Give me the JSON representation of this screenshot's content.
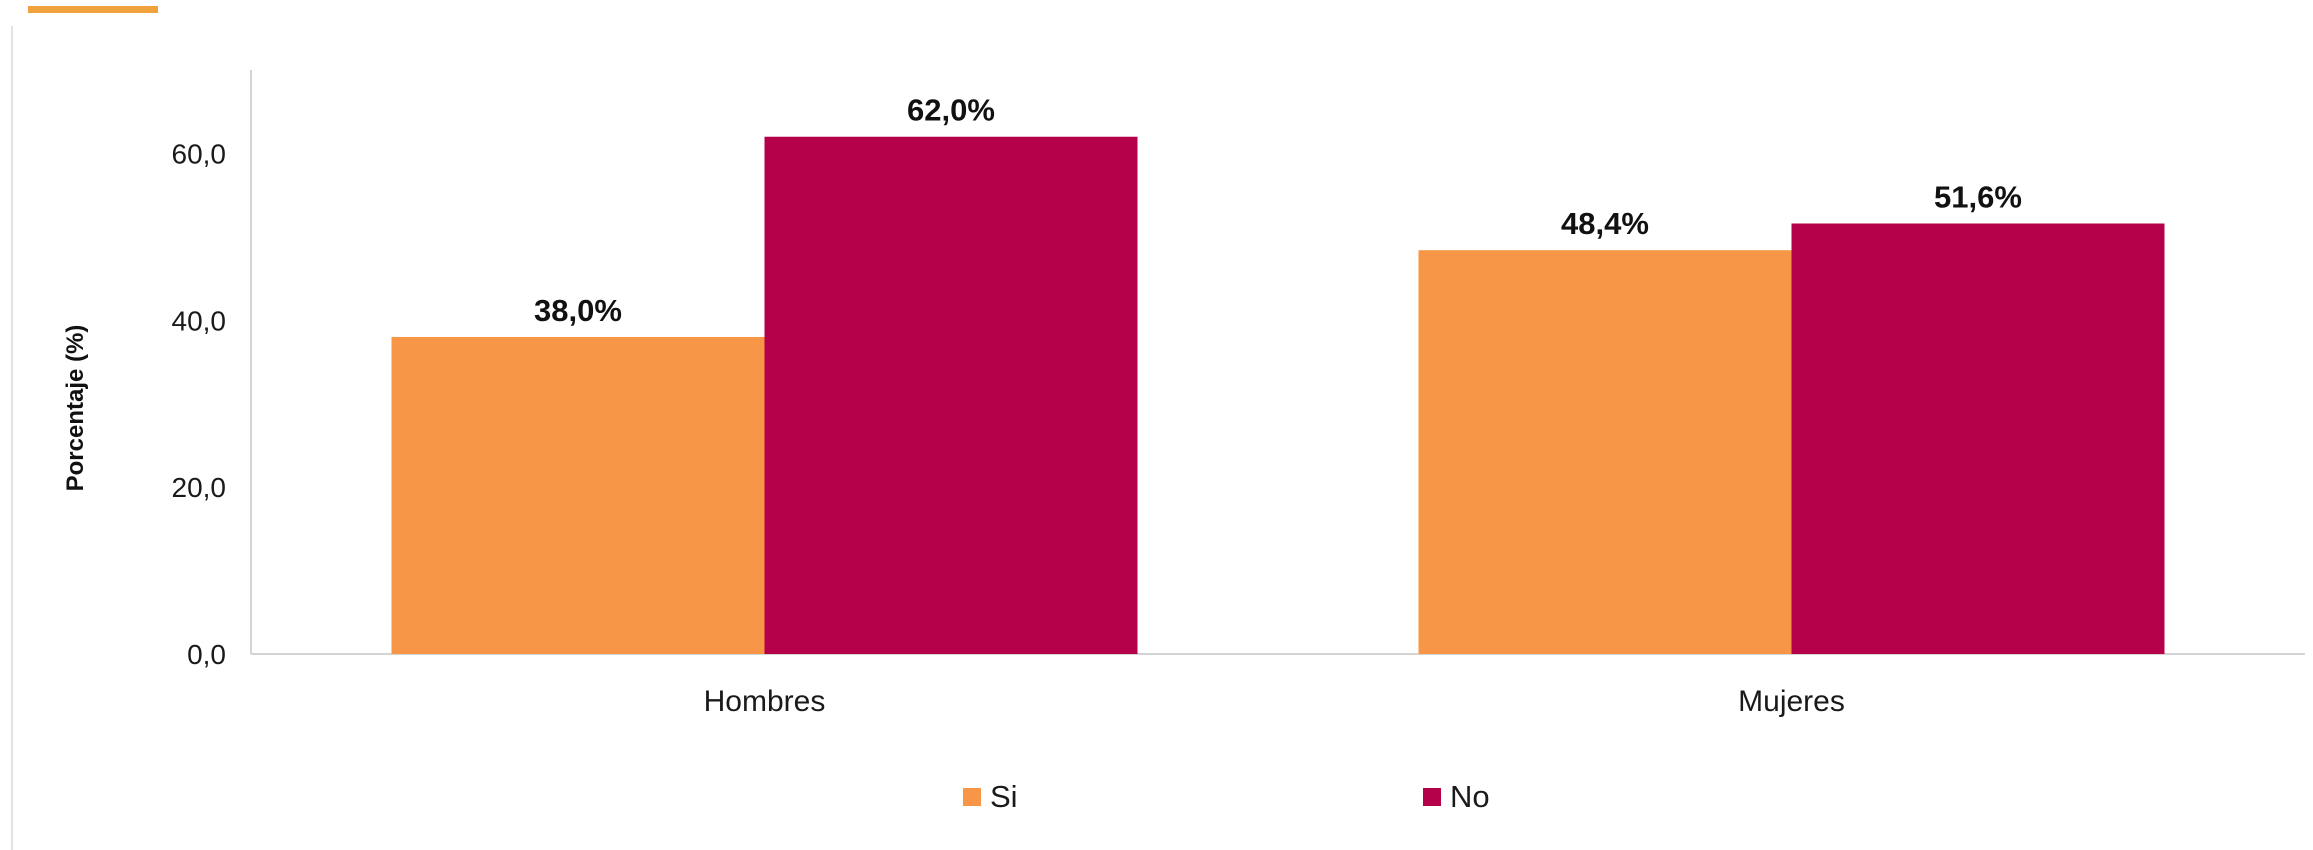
{
  "theme": {
    "accent_color": "#f0a23c",
    "si_color": "#f79646",
    "no_color": "#b5004a",
    "axis_color": "#d4d4d4"
  },
  "chart_data": {
    "type": "bar",
    "title": "",
    "xlabel": "",
    "ylabel": "Porcentaje (%)",
    "categories": [
      "Hombres",
      "Mujeres"
    ],
    "series": [
      {
        "name": "Si",
        "values": [
          38.0,
          48.4
        ],
        "labels": [
          "38,0%",
          "48,4%"
        ]
      },
      {
        "name": "No",
        "values": [
          62.0,
          51.6
        ],
        "labels": [
          "62,0%",
          "51,6%"
        ]
      }
    ],
    "ylim": [
      0,
      70
    ],
    "yticks": [
      0,
      20,
      40,
      60
    ],
    "ytick_labels": [
      "0,0",
      "20,0",
      "40,0",
      "60,0"
    ],
    "grid": false,
    "legend_position": "bottom"
  }
}
